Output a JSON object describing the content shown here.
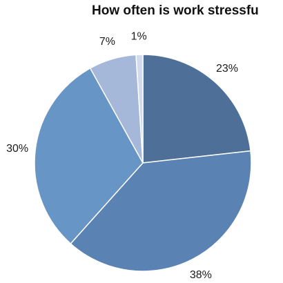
{
  "chart_data": {
    "type": "pie",
    "title": "How often is work stressfu",
    "start_angle_deg": 0,
    "direction": "clockwise",
    "slices": [
      {
        "label": "23%",
        "value": 23,
        "color": "#4e7098"
      },
      {
        "label": "38%",
        "value": 38,
        "color": "#5a83b3"
      },
      {
        "label": "30%",
        "value": 30,
        "color": "#6795c5"
      },
      {
        "label": "7%",
        "value": 7,
        "color": "#a6b8da"
      },
      {
        "label": "1%",
        "value": 1,
        "color": "#d2dbeb"
      }
    ],
    "border_color": "#ffffff"
  }
}
